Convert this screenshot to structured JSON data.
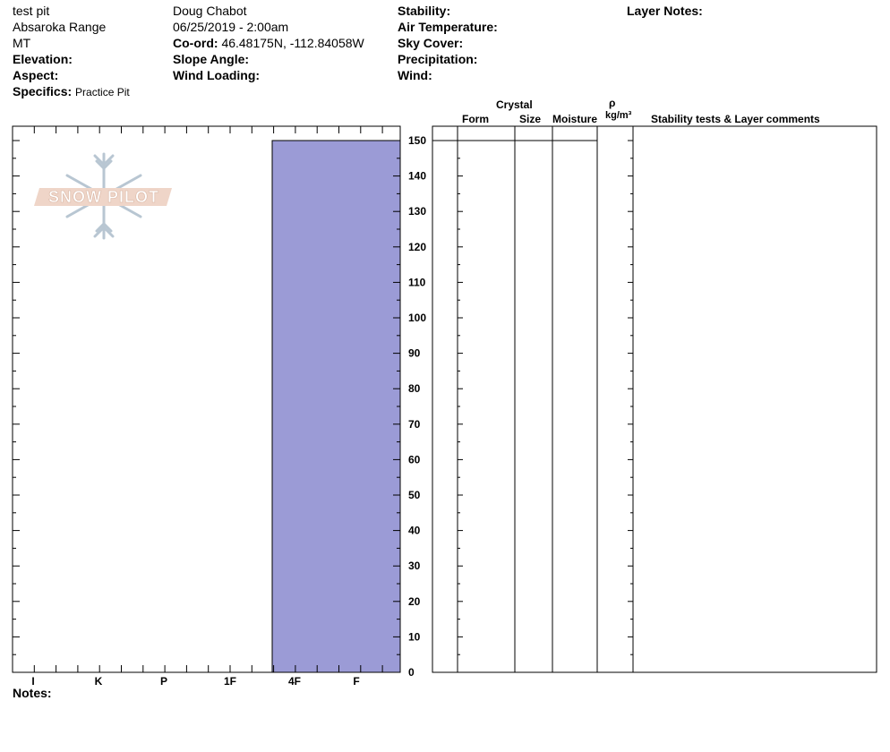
{
  "header": {
    "col1": {
      "pit_name": "test pit",
      "range": "Absaroka Range",
      "state": "MT",
      "elevation_label": "Elevation:",
      "aspect_label": "Aspect:",
      "specifics_label": "Specifics:",
      "specifics_value": "Practice Pit"
    },
    "col2": {
      "observer": "Doug Chabot",
      "datetime": "06/25/2019 - 2:00am",
      "coord_label": "Co-ord:",
      "coord_value": "46.48175N, -112.84058W",
      "slope_label": "Slope Angle:",
      "wind_loading_label": "Wind Loading:"
    },
    "col3": {
      "stability_label": "Stability:",
      "air_temp_label": "Air Temperature:",
      "sky_label": "Sky Cover:",
      "precip_label": "Precipitation:",
      "wind_label": "Wind:"
    },
    "col4": {
      "layer_notes_label": "Layer Notes:"
    }
  },
  "logo": {
    "text": "SNOW PILOT"
  },
  "table_headers": {
    "crystal": "Crystal",
    "form": "Form",
    "size": "Size",
    "moisture": "Moisture",
    "rho": "ρ",
    "density_unit": "kg/m³",
    "comments": "Stability tests & Layer comments"
  },
  "notes_label": "Notes:",
  "colors": {
    "layer_fill": "#9b9bd6",
    "line": "#000000"
  },
  "chart_data": {
    "type": "bar",
    "x_categories": [
      "I",
      "K",
      "P",
      "1F",
      "4F",
      "F"
    ],
    "y_ticks": [
      0,
      10,
      20,
      30,
      40,
      50,
      60,
      70,
      80,
      90,
      100,
      110,
      120,
      130,
      140,
      150
    ],
    "ylim": [
      0,
      150
    ],
    "layers": [
      {
        "top": 150,
        "bottom": 0,
        "hardness": "4F"
      }
    ]
  }
}
